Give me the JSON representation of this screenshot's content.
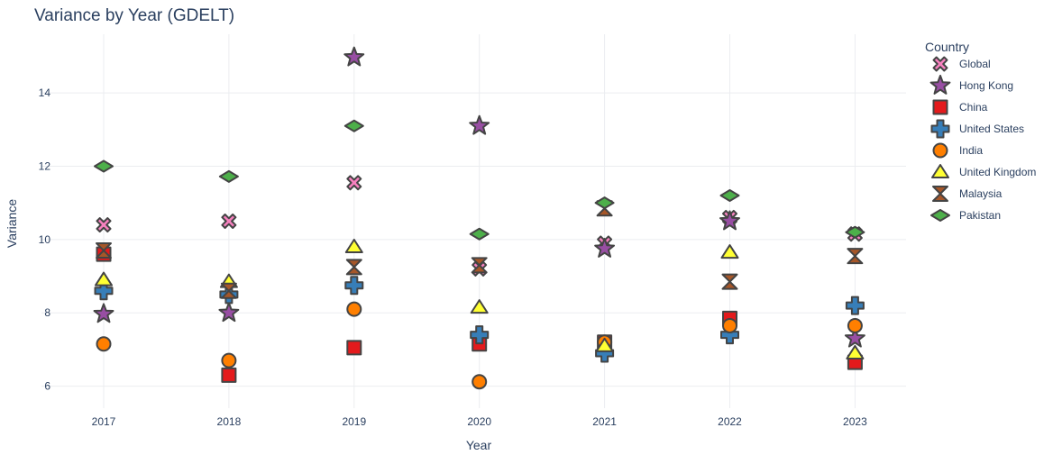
{
  "chart_data": {
    "type": "scatter",
    "title": "Variance by Year (GDELT)",
    "xlabel": "Year",
    "ylabel": "Variance",
    "x": [
      "2017",
      "2018",
      "2019",
      "2020",
      "2021",
      "2022",
      "2023"
    ],
    "yticks": [
      "6",
      "8",
      "10",
      "12",
      "14"
    ],
    "ylim": [
      5.4,
      15.6
    ],
    "grid": true,
    "legend": {
      "title": "Country",
      "position": "right"
    },
    "series": [
      {
        "name": "Global",
        "symbol": "x",
        "color": "#f781bf",
        "values": [
          10.4,
          10.5,
          11.55,
          9.2,
          9.9,
          10.6,
          10.15
        ]
      },
      {
        "name": "Hong Kong",
        "symbol": "star",
        "color": "#984ea3",
        "values": [
          7.97,
          8.0,
          14.97,
          13.1,
          9.75,
          10.5,
          7.3
        ]
      },
      {
        "name": "China",
        "symbol": "square",
        "color": "#e41a1c",
        "values": [
          9.6,
          6.3,
          7.05,
          7.15,
          7.2,
          7.85,
          6.65
        ]
      },
      {
        "name": "United States",
        "symbol": "cross",
        "color": "#377eb8",
        "values": [
          8.6,
          8.5,
          8.75,
          7.4,
          6.9,
          7.4,
          8.2
        ]
      },
      {
        "name": "India",
        "symbol": "circle",
        "color": "#ff7f00",
        "values": [
          7.15,
          6.7,
          8.1,
          6.12,
          7.2,
          7.65,
          7.65
        ]
      },
      {
        "name": "United Kingdom",
        "symbol": "triangle-up",
        "color": "#ffff33",
        "values": [
          8.9,
          8.85,
          9.8,
          8.15,
          7.1,
          9.65,
          6.9
        ]
      },
      {
        "name": "Malaysia",
        "symbol": "bowtie",
        "color": "#a65628",
        "values": [
          9.7,
          8.6,
          9.25,
          9.3,
          10.85,
          8.85,
          9.55
        ]
      },
      {
        "name": "Pakistan",
        "symbol": "diamond-wide",
        "color": "#4daf4a",
        "values": [
          12.0,
          11.72,
          13.1,
          10.15,
          11.0,
          11.2,
          10.2
        ]
      }
    ]
  }
}
